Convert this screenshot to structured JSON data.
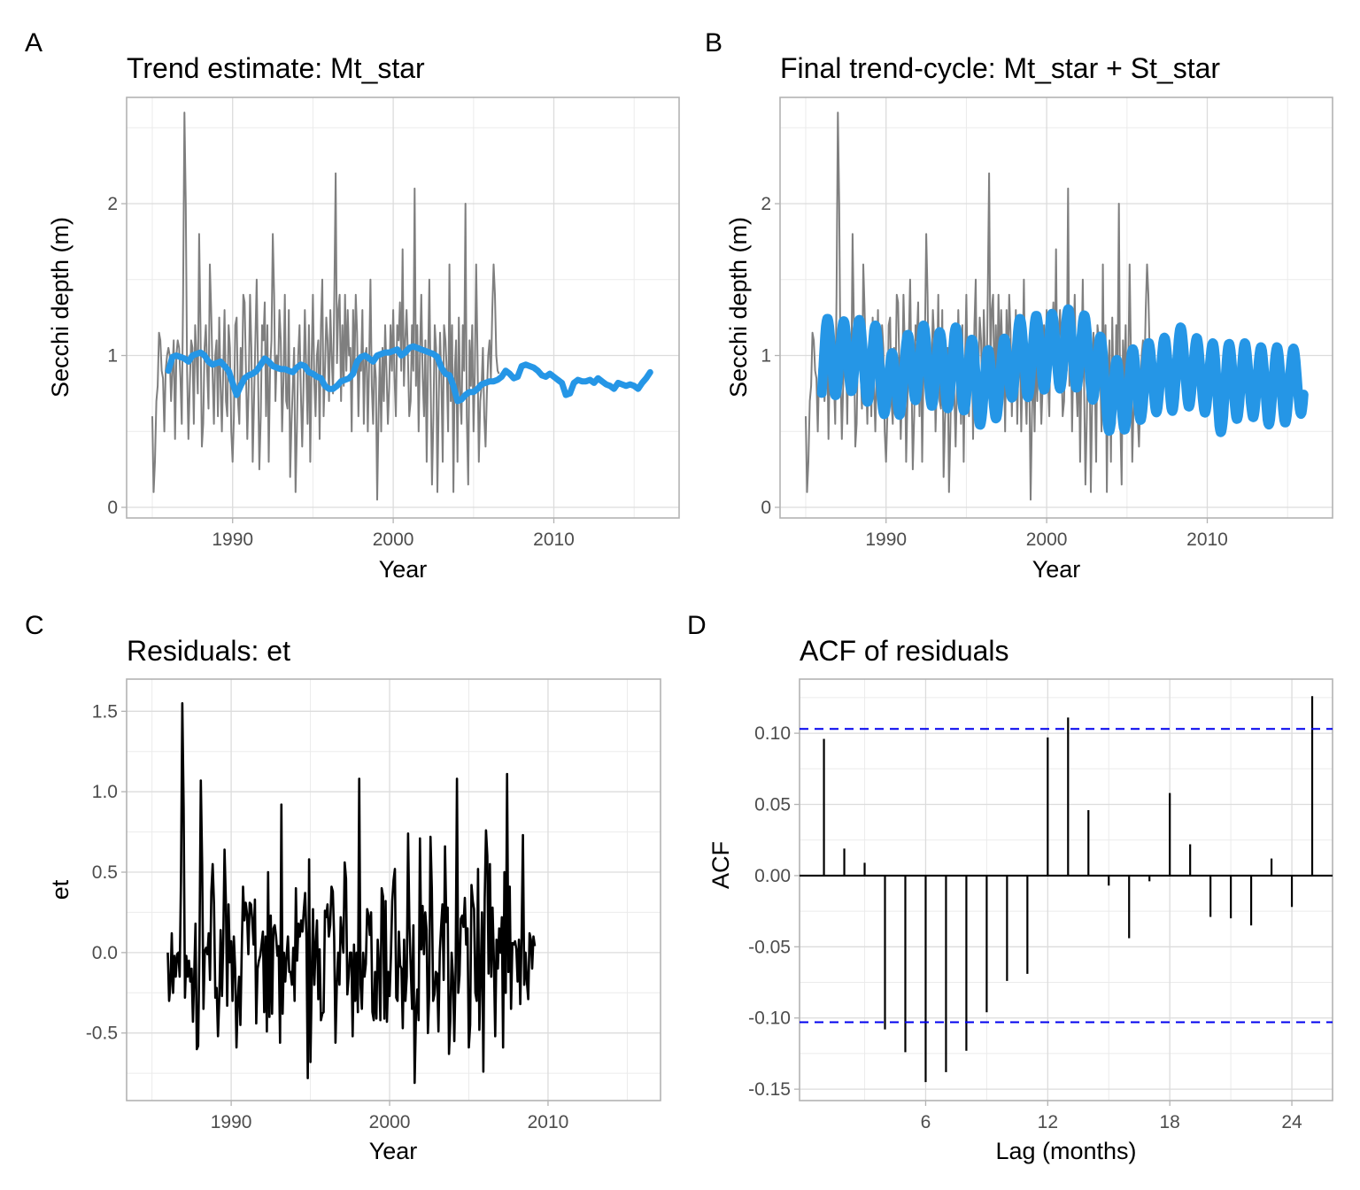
{
  "figure": {
    "panels": [
      "A",
      "B",
      "C",
      "D"
    ]
  },
  "chart_data": [
    {
      "panel": "A",
      "type": "line",
      "title": "Trend estimate: Mt_star",
      "xlabel": "Year",
      "ylabel": "Secchi depth (m)",
      "xlim": [
        1983.4,
        2017.8
      ],
      "ylim": [
        -0.07,
        2.7
      ],
      "xticks": [
        1990,
        2000,
        2010
      ],
      "xtick_labels": [
        "1990",
        "2000",
        "2010"
      ],
      "yticks": [
        0,
        1,
        2
      ],
      "ytick_labels": [
        "0",
        "1",
        "2"
      ],
      "grid": true,
      "series": [
        {
          "name": "observed",
          "color": "#7f7f7f",
          "x_start": 1985.0,
          "x_step": 0.08333,
          "values": [
            0.6,
            0.1,
            0.3,
            0.7,
            0.8,
            1.15,
            1.1,
            0.9,
            0.85,
            0.5,
            0.9,
            1.0,
            1.05,
            1.0,
            0.7,
            0.9,
            1.1,
            0.45,
            1.0,
            1.1,
            1.05,
            0.85,
            0.55,
            1.4,
            2.6,
            2.0,
            0.9,
            0.45,
            0.8,
            1.1,
            1.05,
            0.55,
            1.2,
            1.0,
            0.75,
            1.8,
            1.2,
            0.4,
            0.55,
            1.05,
            1.2,
            0.9,
            0.65,
            1.6,
            1.3,
            0.9,
            0.55,
            1.0,
            1.1,
            0.6,
            1.25,
            0.8,
            0.5,
            0.9,
            1.3,
            0.7,
            0.6,
            1.2,
            1.05,
            0.5,
            0.3,
            0.6,
            1.2,
            1.25,
            0.7,
            0.55,
            1.05,
            0.8,
            1.4,
            1.35,
            0.9,
            0.45,
            0.8,
            1.4,
            1.05,
            0.3,
            0.7,
            1.1,
            1.5,
            0.9,
            0.25,
            0.6,
            1.2,
            1.1,
            1.35,
            0.6,
            1.2,
            0.3,
            0.9,
            1.1,
            1.8,
            1.4,
            0.7,
            1.0,
            0.9,
            1.3,
            1.1,
            0.5,
            0.85,
            1.4,
            0.7,
            0.65,
            1.3,
            0.2,
            0.55,
            0.8,
            1.05,
            0.1,
            0.5,
            1.0,
            1.2,
            0.75,
            0.4,
            0.8,
            1.3,
            0.9,
            0.55,
            1.2,
            0.3,
            0.95,
            1.4,
            0.85,
            0.6,
            1.0,
            1.1,
            0.45,
            1.2,
            1.5,
            0.6,
            0.9,
            1.25,
            1.1,
            0.7,
            1.3,
            1.0,
            0.75,
            1.4,
            2.2,
            0.95,
            1.3,
            1.4,
            0.7,
            1.2,
            0.8,
            1.4,
            0.9,
            1.3,
            1.0,
            1.05,
            0.5,
            1.3,
            0.9,
            1.4,
            1.15,
            0.6,
            1.0,
            0.9,
            1.3,
            0.55,
            1.0,
            1.05,
            0.5,
            0.95,
            1.5,
            0.8,
            0.55,
            1.0,
            0.85,
            0.05,
            0.6,
            1.0,
            0.5,
            1.05,
            0.7,
            1.2,
            0.9,
            0.55,
            0.8,
            1.2,
            0.9,
            1.3,
            0.85,
            0.6,
            1.2,
            1.1,
            1.35,
            0.9,
            1.7,
            0.8,
            1.1,
            1.3,
            1.0,
            0.6,
            0.7,
            1.2,
            0.9,
            2.1,
            0.8,
            1.2,
            0.5,
            1.0,
            1.4,
            0.85,
            0.6,
            1.1,
            0.3,
            0.95,
            1.5,
            0.8,
            0.15,
            0.6,
            1.2,
            1.05,
            0.1,
            0.7,
            1.15,
            0.85,
            0.3,
            1.2,
            1.1,
            0.9,
            0.5,
            1.6,
            0.7,
            1.2,
            0.1,
            0.9,
            1.1,
            0.3,
            1.25,
            0.75,
            0.55,
            1.2,
            0.9,
            2.0,
            0.6,
            0.15,
            1.1,
            0.8,
            1.2,
            0.5,
            0.9,
            1.6,
            1.0,
            0.3,
            0.7,
            0.8,
            1.05,
            0.6,
            0.4,
            0.75,
            1.0,
            1.1,
            0.85,
            1.3,
            1.6,
            1.4,
            1.0,
            0.9,
            0.88
          ]
        },
        {
          "name": "Mt_star (trend)",
          "color": "#2596e6",
          "x_start": 1986.0,
          "x_step": 0.25,
          "values": [
            0.9,
            0.99,
            1.0,
            0.99,
            0.98,
            0.96,
            1.0,
            1.01,
            1.02,
            1.0,
            0.96,
            0.94,
            0.95,
            0.96,
            0.93,
            0.9,
            0.82,
            0.74,
            0.8,
            0.85,
            0.87,
            0.88,
            0.9,
            0.94,
            0.98,
            0.96,
            0.93,
            0.92,
            0.91,
            0.91,
            0.9,
            0.89,
            0.92,
            0.94,
            0.93,
            0.89,
            0.88,
            0.86,
            0.85,
            0.8,
            0.78,
            0.78,
            0.8,
            0.83,
            0.84,
            0.85,
            0.88,
            0.96,
            0.99,
            1.0,
            0.98,
            0.96,
            1.0,
            1.01,
            1.02,
            1.02,
            1.03,
            1.04,
            1.0,
            1.02,
            1.05,
            1.06,
            1.05,
            1.04,
            1.03,
            1.02,
            1.01,
            0.99,
            0.92,
            0.88,
            0.87,
            0.8,
            0.7,
            0.71,
            0.74,
            0.76,
            0.76,
            0.78,
            0.81,
            0.82,
            0.83,
            0.83,
            0.84,
            0.86,
            0.9,
            0.88,
            0.85,
            0.86,
            0.93,
            0.94,
            0.93,
            0.92,
            0.9,
            0.87,
            0.86,
            0.88,
            0.86,
            0.84,
            0.82,
            0.74,
            0.75,
            0.82,
            0.84,
            0.83,
            0.83,
            0.84,
            0.82,
            0.85,
            0.83,
            0.81,
            0.8,
            0.78,
            0.82,
            0.81,
            0.8,
            0.81,
            0.8,
            0.78,
            0.82,
            0.85,
            0.89
          ]
        }
      ]
    },
    {
      "panel": "B",
      "type": "line",
      "title": "Final trend-cycle: Mt_star + St_star",
      "xlabel": "Year",
      "ylabel": "Secchi depth (m)",
      "xlim": [
        1983.4,
        2017.8
      ],
      "ylim": [
        -0.07,
        2.7
      ],
      "xticks": [
        1990,
        2000,
        2010
      ],
      "xtick_labels": [
        "1990",
        "2000",
        "2010"
      ],
      "yticks": [
        0,
        1,
        2
      ],
      "ytick_labels": [
        "0",
        "1",
        "2"
      ],
      "grid": true,
      "series": [
        {
          "name": "observed",
          "color": "#7f7f7f",
          "same_as_panel": "A"
        },
        {
          "name": "Mt_star + St_star",
          "color": "#2596e6",
          "seasonal_amplitude": 0.25,
          "note": "trend from panel A plus annual seasonal cycle (peak ~mid-year)"
        }
      ]
    },
    {
      "panel": "C",
      "type": "line",
      "title": "Residuals: et",
      "xlabel": "Year",
      "ylabel": "et",
      "xlim": [
        1983.4,
        2017.1
      ],
      "ylim": [
        -0.92,
        1.7
      ],
      "xticks": [
        1990,
        2000,
        2010
      ],
      "xtick_labels": [
        "1990",
        "2000",
        "2010"
      ],
      "yticks": [
        -0.5,
        0.0,
        0.5,
        1.0,
        1.5
      ],
      "ytick_labels": [
        "-0.5",
        "0.0",
        "0.5",
        "1.0",
        "1.5"
      ],
      "grid": true,
      "series": [
        {
          "name": "et",
          "color": "#000000",
          "x_start": 1986.0,
          "x_step": 0.08333,
          "values": [
            0.0,
            -0.3,
            -0.2,
            0.12,
            -0.25,
            -0.02,
            -0.15,
            -0.01,
            0.0,
            -0.15,
            0.45,
            1.55,
            0.9,
            -0.28,
            -0.02,
            -0.15,
            -0.05,
            -0.18,
            -0.1,
            -0.43,
            -0.15,
            0.18,
            -0.6,
            -0.58,
            0.05,
            1.07,
            0.55,
            -0.35,
            0.01,
            0.03,
            -0.01,
            0.12,
            -0.17,
            0.38,
            0.55,
            0.3,
            -0.28,
            -0.22,
            -0.52,
            -0.28,
            0.14,
            -0.27,
            0.06,
            0.64,
            0.32,
            -0.33,
            0.3,
            -0.06,
            0.07,
            -0.3,
            0.1,
            -0.1,
            -0.59,
            -0.3,
            -0.15,
            -0.45,
            0.0,
            0.41,
            0.2,
            0.31,
            0.24,
            -0.01,
            0.31,
            0.3,
            0.2,
            0.05,
            0.33,
            -0.44,
            -0.1,
            -0.05,
            -0.02,
            0.05,
            0.13,
            -0.37,
            0.1,
            -0.49,
            0.5,
            -0.4,
            0.23,
            -0.38,
            0.15,
            0.17,
            0.1,
            -0.02,
            0.04,
            -0.56,
            0.92,
            -0.38,
            0.0,
            -0.18,
            -0.02,
            0.1,
            -0.12,
            -0.12,
            -0.2,
            0.03,
            -0.3,
            0.4,
            -0.05,
            0.18,
            0.1,
            0.2,
            0.13,
            0.26,
            0.37,
            0.1,
            -0.78,
            0.58,
            -0.68,
            -0.2,
            0.27,
            -0.2,
            0.04,
            0.2,
            -0.29,
            0.02,
            -0.42,
            -0.38,
            -0.37,
            0.26,
            0.22,
            0.3,
            0.1,
            0.17,
            0.41,
            0.38,
            0.1,
            -0.56,
            -0.2,
            0.0,
            -0.2,
            0.22,
            0.1,
            0.0,
            0.56,
            0.46,
            -0.26,
            -0.15,
            0.0,
            0.0,
            -0.52,
            0.05,
            -0.3,
            0.0,
            -0.37,
            1.08,
            -0.2,
            -0.35,
            0.0,
            -0.15,
            -0.07,
            0.27,
            0.23,
            0.11,
            0.25,
            -0.37,
            -0.42,
            -0.12,
            -0.41,
            0.08,
            -0.08,
            -0.42,
            0.4,
            0.35,
            -0.41,
            0.32,
            -0.43,
            -0.12,
            -0.27,
            -0.03,
            0.32,
            0.45,
            0.52,
            -0.28,
            -0.3,
            0.13,
            -0.08,
            -0.1,
            -0.47,
            0.08,
            -0.3,
            -0.15,
            0.74,
            0.17,
            -0.1,
            -0.35,
            0.17,
            -0.81,
            -0.38,
            -0.23,
            -0.42,
            0.71,
            0.02,
            0.29,
            -0.01,
            0.25,
            0.14,
            -0.5,
            -0.26,
            0.72,
            0.4,
            -0.3,
            -0.26,
            -0.12,
            -0.13,
            -0.49,
            0.0,
            0.16,
            0.3,
            -0.17,
            0.66,
            0.19,
            0.28,
            -0.63,
            -0.42,
            0.0,
            -0.15,
            -0.55,
            -0.11,
            1.08,
            -0.25,
            -0.14,
            0.21,
            0.23,
            0.16,
            0.34,
            0.05,
            0.15,
            -0.59,
            -0.45,
            0.42,
            0.32,
            0.27,
            -0.25,
            -0.3,
            0.52,
            -0.48,
            -0.12,
            0.25,
            -0.74,
            0.33,
            0.76,
            0.6,
            -0.13,
            0.55,
            -0.15,
            0.28,
            -0.05,
            -0.52,
            0.08,
            -0.1,
            0.15,
            0.0,
            0.22,
            -0.59,
            0.5,
            -0.25,
            1.11,
            -0.12,
            0.41,
            -0.35,
            0.06,
            0.05,
            0.07,
            0.02,
            -0.18,
            0.08,
            -0.32,
            0.1,
            0.73,
            -0.2,
            0.0,
            -0.18,
            -0.29,
            0.12,
            0.08,
            -0.1,
            0.1,
            0.04
          ]
        }
      ]
    },
    {
      "panel": "D",
      "type": "bar",
      "title": "ACF of residuals",
      "xlabel": "Lag (months)",
      "ylabel": "ACF",
      "xlim": [
        -0.2,
        26.0
      ],
      "ylim": [
        -0.158,
        0.138
      ],
      "xticks": [
        6,
        12,
        18,
        24
      ],
      "xtick_labels": [
        "6",
        "12",
        "18",
        "24"
      ],
      "yticks": [
        -0.15,
        -0.1,
        -0.05,
        0.0,
        0.05,
        0.1
      ],
      "ytick_labels": [
        "-0.15",
        "-0.10",
        "-0.05",
        "0.00",
        "0.05",
        "0.10"
      ],
      "grid": true,
      "categories": [
        1,
        2,
        3,
        4,
        5,
        6,
        7,
        8,
        9,
        10,
        11,
        12,
        13,
        14,
        15,
        16,
        17,
        18,
        19,
        20,
        21,
        22,
        23,
        24,
        25
      ],
      "values": [
        0.096,
        0.019,
        0.009,
        -0.108,
        -0.124,
        -0.145,
        -0.138,
        -0.123,
        -0.096,
        -0.074,
        -0.069,
        0.097,
        0.111,
        0.046,
        -0.007,
        -0.044,
        -0.004,
        0.058,
        0.022,
        -0.029,
        -0.03,
        -0.035,
        0.012,
        -0.022,
        0.126
      ],
      "confidence_bounds": [
        -0.103,
        0.103
      ],
      "colors": {
        "bars": "#000000",
        "confidence": "#0000ee",
        "zero_line": "#000000"
      }
    }
  ]
}
